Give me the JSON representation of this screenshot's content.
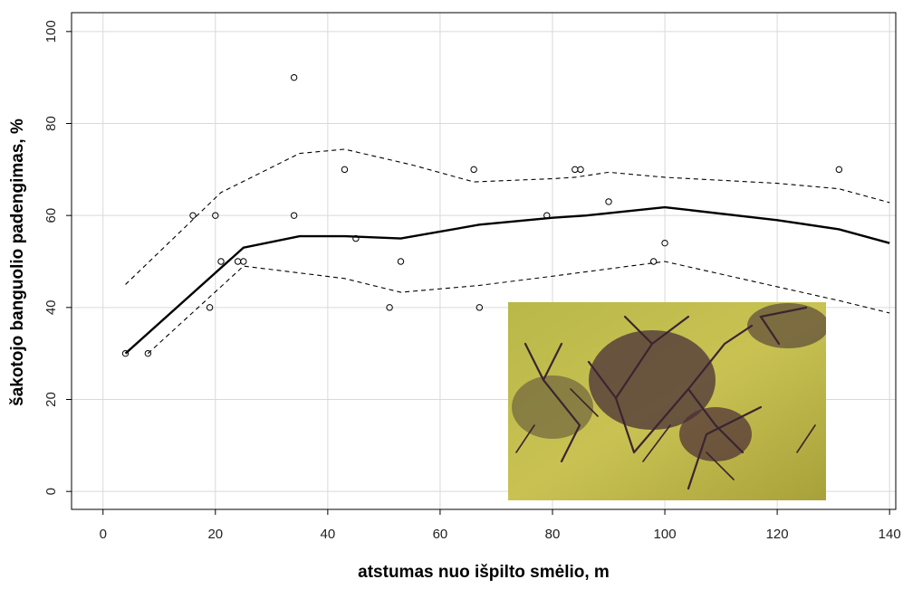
{
  "chart_data": {
    "type": "scatter",
    "xlabel": "atstumas nuo išpilto smėlio, m",
    "ylabel": "šakotojo banguolio padengimas, %",
    "xlim": [
      -5.6,
      141.1
    ],
    "ylim": [
      -3.9,
      104.1
    ],
    "xticks": [
      0,
      20,
      40,
      60,
      80,
      100,
      120,
      140
    ],
    "yticks": [
      0,
      20,
      40,
      60,
      80,
      100
    ],
    "grid": true,
    "series": [
      {
        "style": "points",
        "color": "#000000",
        "x": [
          4,
          8,
          16,
          19,
          20,
          21,
          24,
          25,
          34,
          34,
          43,
          45,
          51,
          53,
          66,
          67,
          79,
          84,
          85,
          90,
          98,
          100,
          131
        ],
        "values": [
          30,
          30,
          60,
          40,
          60,
          50,
          50,
          50,
          90,
          60,
          70,
          55,
          40,
          50,
          70,
          40,
          60,
          70,
          70,
          63,
          50,
          54,
          70
        ]
      },
      {
        "style": "solid",
        "color": "#000000",
        "x": [
          4,
          25,
          35,
          43,
          53,
          67,
          80,
          86,
          100,
          120,
          131,
          140
        ],
        "values": [
          30,
          53,
          55.5,
          55.5,
          55,
          58,
          59.5,
          60,
          61.8,
          59,
          57,
          54
        ]
      },
      {
        "style": "dashed",
        "color": "#000000",
        "x": [
          4,
          21,
          35,
          43,
          55,
          66,
          80,
          84,
          90,
          100,
          120,
          131,
          140
        ],
        "values": [
          45,
          65,
          73.5,
          74.4,
          71,
          67.3,
          68,
          68.3,
          69.4,
          68.3,
          67,
          65.8,
          62.8
        ]
      },
      {
        "style": "dashed",
        "color": "#000000",
        "x": [
          8,
          25,
          35,
          43,
          53,
          67,
          80,
          100,
          120,
          131,
          140
        ],
        "values": [
          30,
          49,
          47.5,
          46.3,
          43.3,
          44.8,
          46.8,
          50,
          44.5,
          41.5,
          38.8
        ]
      }
    ]
  }
}
